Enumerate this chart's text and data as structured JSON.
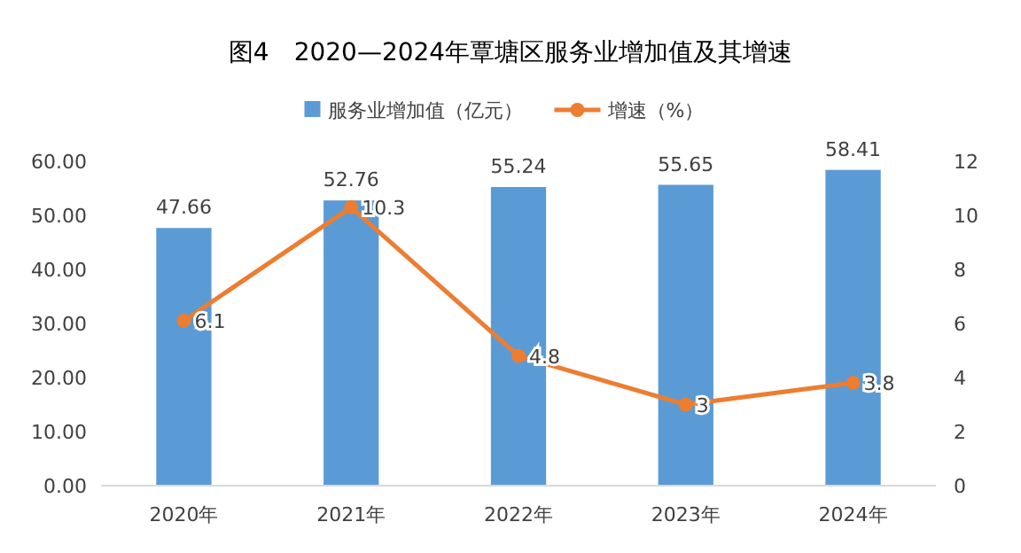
{
  "chart_data": {
    "type": "bar",
    "title": "图4　2020—2024年覃塘区服务业增加值及其增速",
    "categories": [
      "2020年",
      "2021年",
      "2022年",
      "2023年",
      "2024年"
    ],
    "series": [
      {
        "name": "服务业增加值（亿元）",
        "color": "#5b9bd5",
        "values": [
          47.66,
          52.76,
          55.24,
          55.65,
          58.41
        ]
      },
      {
        "name": "增速（%）",
        "type": "line",
        "axis": "y2",
        "color": "#ed7d31",
        "values": [
          6.1,
          10.3,
          4.8,
          3,
          3.8
        ]
      }
    ],
    "ylim": [
      0,
      60
    ],
    "yticks": [
      {
        "value": 0,
        "label": "0.00"
      },
      {
        "value": 10,
        "label": "10.00"
      },
      {
        "value": 20,
        "label": "20.00"
      },
      {
        "value": 30,
        "label": "30.00"
      },
      {
        "value": 40,
        "label": "40.00"
      },
      {
        "value": 50,
        "label": "50.00"
      },
      {
        "value": 60,
        "label": "60.00"
      }
    ],
    "y2lim": [
      0,
      12
    ],
    "y2ticks": [
      0,
      2,
      4,
      6,
      8,
      10,
      12
    ],
    "data_labels": true,
    "legend": "top",
    "marker": "circle",
    "grid": false
  }
}
